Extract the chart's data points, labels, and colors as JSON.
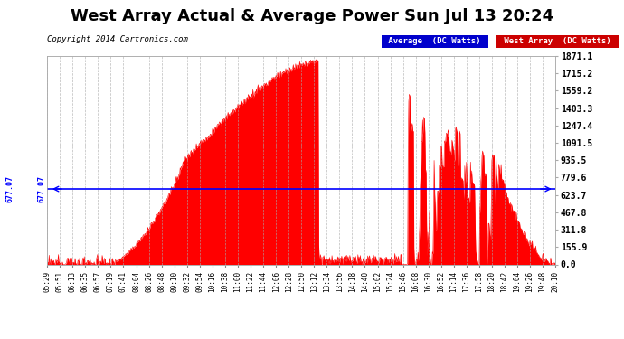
{
  "title": "West Array Actual & Average Power Sun Jul 13 20:24",
  "copyright": "Copyright 2014 Cartronics.com",
  "average_value": 677.07,
  "yticks": [
    0.0,
    155.9,
    311.8,
    467.8,
    623.7,
    779.6,
    935.5,
    1091.5,
    1247.4,
    1403.3,
    1559.2,
    1715.2,
    1871.1
  ],
  "ymax": 1871.1,
  "ymin": 0.0,
  "avg_label": "Average  (DC Watts)",
  "west_label": "West Array  (DC Watts)",
  "avg_color": "#0000ff",
  "west_color": "#ff0000",
  "avg_legend_bg": "#0000cc",
  "west_legend_bg": "#cc0000",
  "plot_bg": "#ffffff",
  "grid_color": "#aaaaaa",
  "fig_bg": "#ffffff",
  "title_fontsize": 13,
  "copyright_fontsize": 6.5,
  "tick_fontsize": 5.5,
  "ytick_fontsize": 7
}
